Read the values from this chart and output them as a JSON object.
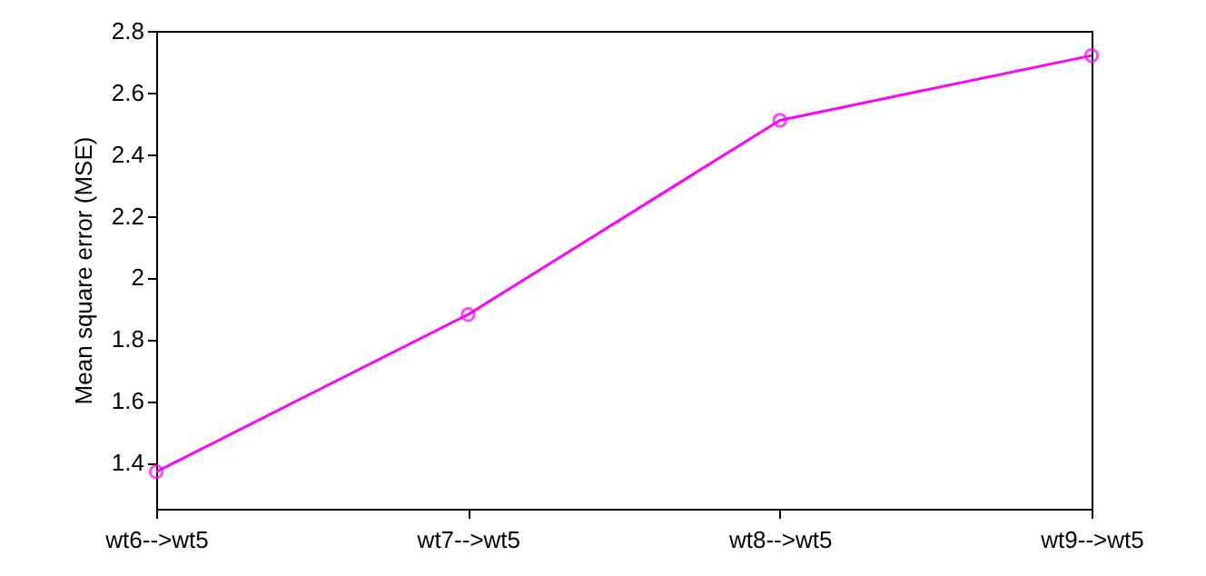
{
  "chart_data": {
    "type": "line",
    "ylabel": "Mean square error (MSE)",
    "categories": [
      "wt6-->wt5",
      "wt7-->wt5",
      "wt8-->wt5",
      "wt9-->wt5"
    ],
    "series": [
      {
        "color": "#ff00ff",
        "values": [
          1.37,
          1.88,
          2.51,
          2.72
        ]
      }
    ],
    "ylim": [
      1.25,
      2.8
    ],
    "yticks": [
      1.4,
      1.6,
      1.8,
      2,
      2.2,
      2.4,
      2.6,
      2.8
    ],
    "grid": false,
    "marker": "circle",
    "line_style": "solid"
  }
}
